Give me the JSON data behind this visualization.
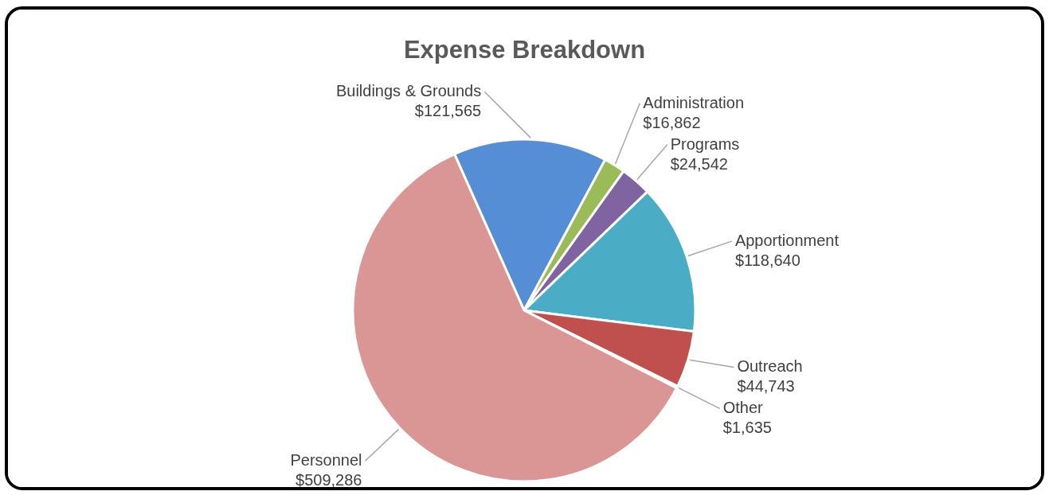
{
  "chart_data": {
    "type": "pie",
    "title": "Expense Breakdown",
    "categories": [
      "Buildings & Grounds",
      "Administration",
      "Programs",
      "Apportionment",
      "Outreach",
      "Other",
      "Personnel"
    ],
    "values": [
      121565,
      16862,
      24542,
      118640,
      44743,
      1635,
      509286
    ],
    "value_labels": [
      "$121,565",
      "$16,862",
      "$24,542",
      "$118,640",
      "$44,743",
      "$1,635",
      "$509,286"
    ],
    "colors": [
      "#558ed5",
      "#9bbb59",
      "#8064a2",
      "#4bacc6",
      "#c0504d",
      "#f79646",
      "#d99694"
    ],
    "legend": false
  }
}
